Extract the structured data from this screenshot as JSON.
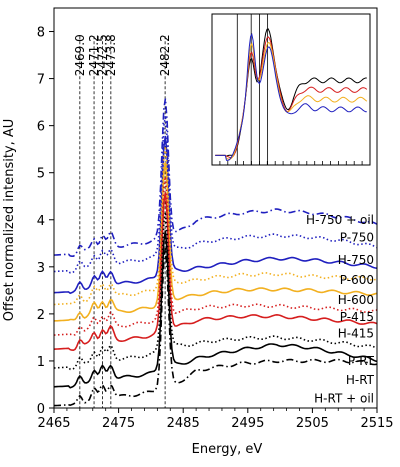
{
  "chart_data": {
    "type": "line",
    "xlabel": "Energy, eV",
    "ylabel": "Offset normalized intensity, AU",
    "xlim": [
      2465,
      2515
    ],
    "ylim": [
      0,
      8.5
    ],
    "xticks": [
      2465,
      2475,
      2485,
      2495,
      2505,
      2515
    ],
    "yticks": [
      0,
      1,
      2,
      3,
      4,
      5,
      6,
      7,
      8
    ],
    "grid": false,
    "legend": "none",
    "reference_lines": [
      {
        "x": 2469.0,
        "label": "2469.0"
      },
      {
        "x": 2471.2,
        "label": "2471.2"
      },
      {
        "x": 2472.5,
        "label": "2472.5"
      },
      {
        "x": 2473.8,
        "label": "2473.8"
      },
      {
        "x": 2482.2,
        "label": "2482.2"
      }
    ],
    "series": [
      {
        "name": "H-750 + oil",
        "color": "#1f1fbf",
        "style": "dashdot",
        "offset": 3.25,
        "tail": [
          0.5,
          0.65,
          0.75,
          0.8,
          0.75,
          0.65,
          0.5
        ],
        "labelY": 4.0
      },
      {
        "name": "P-750",
        "color": "#1f1fbf",
        "style": "dotted",
        "offset": 2.9,
        "tail": [
          0.35,
          0.5,
          0.58,
          0.62,
          0.58,
          0.5,
          0.38
        ],
        "labelY": 3.62
      },
      {
        "name": "H-750",
        "color": "#1f1fbf",
        "style": "solid",
        "offset": 2.45,
        "tail": [
          0.3,
          0.42,
          0.52,
          0.58,
          0.55,
          0.48,
          0.4
        ],
        "labelY": 3.15
      },
      {
        "name": "P-600",
        "color": "#f2b020",
        "style": "dotted",
        "offset": 2.2,
        "tail": [
          0.3,
          0.42,
          0.48,
          0.5,
          0.45,
          0.42,
          0.4
        ],
        "labelY": 2.72
      },
      {
        "name": "H-600",
        "color": "#f2b020",
        "style": "solid",
        "offset": 1.85,
        "tail": [
          0.35,
          0.45,
          0.52,
          0.52,
          0.5,
          0.46,
          0.42
        ],
        "labelY": 2.3
      },
      {
        "name": "P-415",
        "color": "#d61e1e",
        "style": "dotted",
        "offset": 1.55,
        "tail": [
          0.38,
          0.45,
          0.48,
          0.47,
          0.43,
          0.4,
          0.35
        ],
        "labelY": 1.93
      },
      {
        "name": "H-415",
        "color": "#d61e1e",
        "style": "solid",
        "offset": 1.25,
        "tail": [
          0.4,
          0.5,
          0.55,
          0.55,
          0.5,
          0.45,
          0.38
        ],
        "labelY": 1.58
      },
      {
        "name": "P-RT",
        "color": "#000000",
        "style": "dotted",
        "offset": 0.85,
        "tail": [
          0.3,
          0.42,
          0.48,
          0.5,
          0.45,
          0.38,
          0.28
        ],
        "labelY": 1.0
      },
      {
        "name": "H-RT",
        "color": "#000000",
        "style": "solid",
        "offset": 0.45,
        "tail": [
          0.35,
          0.52,
          0.65,
          0.75,
          0.68,
          0.55,
          0.42
        ],
        "labelY": 0.6
      },
      {
        "name": "H-RT + oil",
        "color": "#000000",
        "style": "dashdot",
        "offset": 0.05,
        "tail": [
          0.5,
          0.65,
          0.75,
          0.8,
          0.8,
          0.8,
          0.75
        ],
        "labelY": 0.2
      }
    ],
    "inset": {
      "xlim": [
        2465,
        2490
      ],
      "ylim": [
        0,
        1
      ],
      "vlines": [
        2469.0,
        2471.2,
        2472.5,
        2473.8
      ],
      "series": [
        {
          "color": "#000000"
        },
        {
          "color": "#d61e1e"
        },
        {
          "color": "#f2b020"
        },
        {
          "color": "#1f1fbf"
        }
      ]
    }
  }
}
